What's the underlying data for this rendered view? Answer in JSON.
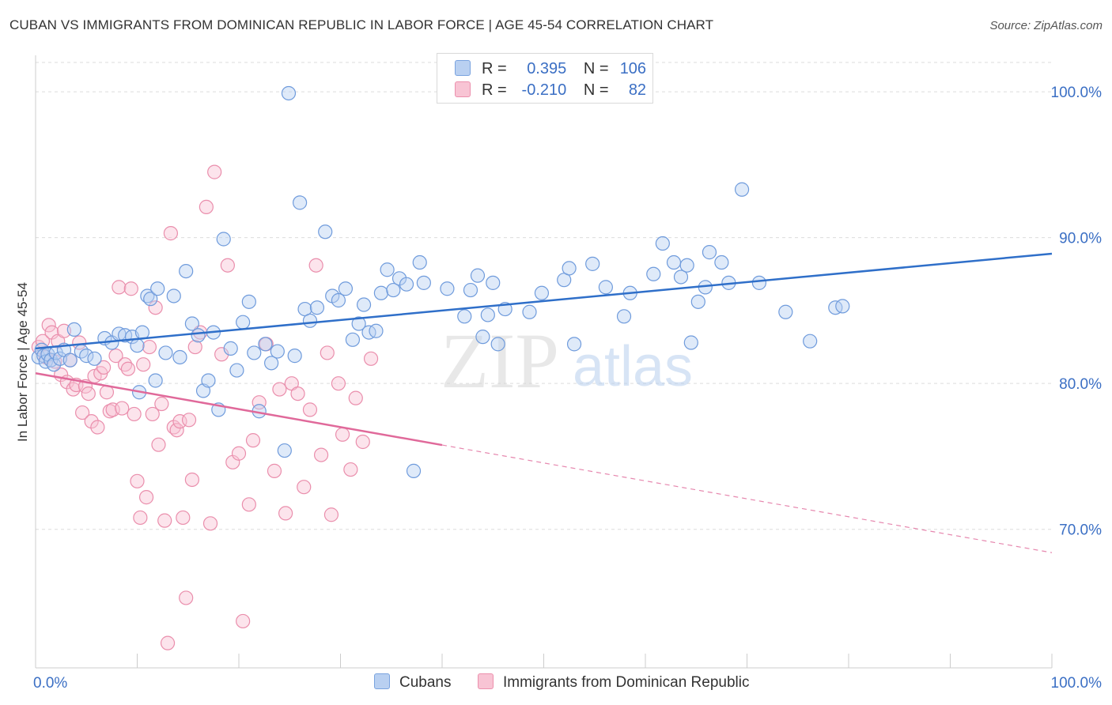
{
  "title": "CUBAN VS IMMIGRANTS FROM DOMINICAN REPUBLIC IN LABOR FORCE | AGE 45-54 CORRELATION CHART",
  "source": "Source: ZipAtlas.com",
  "watermark": {
    "zip": "ZIP",
    "atlas": "atlas"
  },
  "legend": {
    "rows": [
      {
        "r_label": "R =",
        "r_value": "0.395",
        "n_label": "N =",
        "n_value": "106"
      },
      {
        "r_label": "R =",
        "r_value": "-0.210",
        "n_label": "N =",
        "n_value": "82"
      }
    ]
  },
  "bottom_legend": {
    "series_a": "Cubans",
    "series_b": "Immigrants from Dominican Republic"
  },
  "colors": {
    "blue_fill": "#b9d0f1",
    "blue_stroke": "#6f9bdc",
    "blue_line": "#2f6fc9",
    "pink_fill": "#f8c4d4",
    "pink_stroke": "#ea8eac",
    "pink_line": "#e0699a",
    "tick_text": "#3b6fc4",
    "grid": "#dcdcdc"
  },
  "chart_data": {
    "type": "scatter",
    "title": "CUBAN VS IMMIGRANTS FROM DOMINICAN REPUBLIC IN LABOR FORCE | AGE 45-54 CORRELATION CHART",
    "xlabel": "",
    "ylabel": "In Labor Force | Age 45-54",
    "xlim": [
      0,
      100
    ],
    "ylim": [
      60.5,
      102.5
    ],
    "x_tick_labels": [
      {
        "value": 0,
        "label": "0.0%"
      },
      {
        "value": 100,
        "label": "100.0%"
      }
    ],
    "y_ticks": [
      {
        "value": 70,
        "label": "70.0%"
      },
      {
        "value": 80,
        "label": "80.0%"
      },
      {
        "value": 90,
        "label": "90.0%"
      },
      {
        "value": 100,
        "label": "100.0%"
      }
    ],
    "legend_position": "top-center",
    "series": [
      {
        "name": "Cubans",
        "r": 0.395,
        "n": 106,
        "trend": {
          "x0": 0,
          "y0": 82.4,
          "x1": 100,
          "y1": 88.9,
          "dashed_from": null
        },
        "points": [
          [
            0.3,
            81.8
          ],
          [
            0.6,
            82.3
          ],
          [
            0.8,
            81.9
          ],
          [
            1.0,
            81.5
          ],
          [
            1.2,
            82.0
          ],
          [
            1.5,
            81.6
          ],
          [
            1.8,
            81.3
          ],
          [
            2.0,
            82.1
          ],
          [
            2.4,
            81.7
          ],
          [
            2.8,
            82.3
          ],
          [
            3.4,
            81.6
          ],
          [
            3.8,
            83.7
          ],
          [
            4.5,
            82.2
          ],
          [
            5.0,
            81.9
          ],
          [
            5.8,
            81.7
          ],
          [
            6.8,
            83.1
          ],
          [
            7.5,
            82.8
          ],
          [
            8.2,
            83.4
          ],
          [
            8.8,
            83.3
          ],
          [
            9.5,
            83.2
          ],
          [
            10.0,
            82.6
          ],
          [
            10.2,
            79.4
          ],
          [
            10.5,
            83.5
          ],
          [
            11.0,
            86.0
          ],
          [
            11.3,
            85.8
          ],
          [
            11.8,
            80.2
          ],
          [
            12.0,
            86.5
          ],
          [
            12.8,
            82.1
          ],
          [
            13.6,
            86.0
          ],
          [
            14.2,
            81.8
          ],
          [
            14.8,
            87.7
          ],
          [
            15.4,
            84.1
          ],
          [
            16.0,
            83.3
          ],
          [
            16.5,
            79.5
          ],
          [
            17.0,
            80.2
          ],
          [
            17.5,
            83.5
          ],
          [
            18.0,
            78.2
          ],
          [
            18.5,
            89.9
          ],
          [
            19.2,
            82.4
          ],
          [
            19.8,
            80.9
          ],
          [
            20.4,
            84.2
          ],
          [
            21.0,
            85.6
          ],
          [
            21.5,
            82.1
          ],
          [
            22.0,
            78.1
          ],
          [
            22.6,
            82.7
          ],
          [
            23.2,
            81.4
          ],
          [
            23.8,
            82.2
          ],
          [
            24.5,
            75.4
          ],
          [
            24.9,
            99.9
          ],
          [
            25.5,
            81.9
          ],
          [
            26.0,
            92.4
          ],
          [
            26.5,
            85.1
          ],
          [
            27.0,
            84.3
          ],
          [
            27.7,
            85.2
          ],
          [
            28.5,
            90.4
          ],
          [
            29.2,
            86.0
          ],
          [
            29.8,
            85.7
          ],
          [
            30.5,
            86.5
          ],
          [
            31.2,
            83.0
          ],
          [
            31.8,
            84.1
          ],
          [
            32.3,
            85.4
          ],
          [
            32.8,
            83.5
          ],
          [
            33.5,
            83.6
          ],
          [
            34.0,
            86.2
          ],
          [
            34.6,
            87.8
          ],
          [
            35.2,
            86.4
          ],
          [
            35.8,
            87.2
          ],
          [
            36.5,
            86.8
          ],
          [
            37.2,
            74.0
          ],
          [
            37.8,
            88.3
          ],
          [
            38.2,
            86.9
          ],
          [
            40.5,
            86.5
          ],
          [
            42.2,
            84.6
          ],
          [
            42.8,
            86.4
          ],
          [
            43.5,
            87.4
          ],
          [
            44.0,
            83.2
          ],
          [
            44.5,
            84.7
          ],
          [
            45.0,
            86.9
          ],
          [
            45.5,
            82.7
          ],
          [
            46.2,
            85.1
          ],
          [
            48.6,
            84.9
          ],
          [
            49.8,
            86.2
          ],
          [
            52.0,
            87.1
          ],
          [
            52.5,
            87.9
          ],
          [
            53.0,
            82.7
          ],
          [
            54.8,
            88.2
          ],
          [
            56.1,
            86.6
          ],
          [
            57.9,
            84.6
          ],
          [
            58.5,
            86.2
          ],
          [
            60.8,
            87.5
          ],
          [
            61.7,
            89.6
          ],
          [
            62.8,
            88.3
          ],
          [
            63.5,
            87.3
          ],
          [
            64.1,
            88.1
          ],
          [
            64.5,
            82.8
          ],
          [
            65.2,
            85.6
          ],
          [
            65.9,
            86.6
          ],
          [
            66.3,
            89.0
          ],
          [
            67.5,
            88.3
          ],
          [
            68.2,
            86.9
          ],
          [
            69.5,
            93.3
          ],
          [
            71.2,
            86.9
          ],
          [
            73.8,
            84.9
          ],
          [
            76.2,
            82.9
          ],
          [
            78.7,
            85.2
          ],
          [
            79.4,
            85.3
          ]
        ]
      },
      {
        "name": "Immigrants from Dominican Republic",
        "r": -0.21,
        "n": 82,
        "trend": {
          "x0": 0,
          "y0": 80.7,
          "x1": 100,
          "y1": 68.4,
          "dashed_from": 40
        },
        "points": [
          [
            0.3,
            82.5
          ],
          [
            0.7,
            82.9
          ],
          [
            1.0,
            81.8
          ],
          [
            1.3,
            84.0
          ],
          [
            1.6,
            83.5
          ],
          [
            1.9,
            81.5
          ],
          [
            2.2,
            82.9
          ],
          [
            2.5,
            80.6
          ],
          [
            2.8,
            83.6
          ],
          [
            3.1,
            80.1
          ],
          [
            3.4,
            81.6
          ],
          [
            3.7,
            79.6
          ],
          [
            4.0,
            79.9
          ],
          [
            4.3,
            82.8
          ],
          [
            4.6,
            78.0
          ],
          [
            4.9,
            79.8
          ],
          [
            5.2,
            79.3
          ],
          [
            5.5,
            77.4
          ],
          [
            5.8,
            80.5
          ],
          [
            6.1,
            77.0
          ],
          [
            6.4,
            80.7
          ],
          [
            6.7,
            81.1
          ],
          [
            7.0,
            79.4
          ],
          [
            7.3,
            78.1
          ],
          [
            7.6,
            78.2
          ],
          [
            7.9,
            81.9
          ],
          [
            8.2,
            86.6
          ],
          [
            8.5,
            78.3
          ],
          [
            8.8,
            81.3
          ],
          [
            9.1,
            81.0
          ],
          [
            9.4,
            86.5
          ],
          [
            9.7,
            77.9
          ],
          [
            10.0,
            73.3
          ],
          [
            10.3,
            70.8
          ],
          [
            10.6,
            81.3
          ],
          [
            10.9,
            72.2
          ],
          [
            11.2,
            82.5
          ],
          [
            11.5,
            77.9
          ],
          [
            11.8,
            85.2
          ],
          [
            12.1,
            75.8
          ],
          [
            12.4,
            78.6
          ],
          [
            12.7,
            70.6
          ],
          [
            13.0,
            62.2
          ],
          [
            13.3,
            90.3
          ],
          [
            13.6,
            77.0
          ],
          [
            13.9,
            76.8
          ],
          [
            14.2,
            77.4
          ],
          [
            14.5,
            70.8
          ],
          [
            14.8,
            65.3
          ],
          [
            15.1,
            77.5
          ],
          [
            15.4,
            73.4
          ],
          [
            15.7,
            82.5
          ],
          [
            16.2,
            83.5
          ],
          [
            16.8,
            92.1
          ],
          [
            17.2,
            70.4
          ],
          [
            17.6,
            94.5
          ],
          [
            18.3,
            82.0
          ],
          [
            18.9,
            88.1
          ],
          [
            19.4,
            74.6
          ],
          [
            20.0,
            75.2
          ],
          [
            20.4,
            63.7
          ],
          [
            21.0,
            71.7
          ],
          [
            21.4,
            76.1
          ],
          [
            22.0,
            78.7
          ],
          [
            22.7,
            82.7
          ],
          [
            23.5,
            74.0
          ],
          [
            24.0,
            79.6
          ],
          [
            24.6,
            71.1
          ],
          [
            25.2,
            80.0
          ],
          [
            25.8,
            79.3
          ],
          [
            26.4,
            72.9
          ],
          [
            27.0,
            78.2
          ],
          [
            27.6,
            88.1
          ],
          [
            28.1,
            75.1
          ],
          [
            28.7,
            82.1
          ],
          [
            29.1,
            71.0
          ],
          [
            29.8,
            80.0
          ],
          [
            30.2,
            76.5
          ],
          [
            31.0,
            74.1
          ],
          [
            31.5,
            79.0
          ],
          [
            32.2,
            76.0
          ],
          [
            33.0,
            81.7
          ]
        ]
      }
    ]
  }
}
